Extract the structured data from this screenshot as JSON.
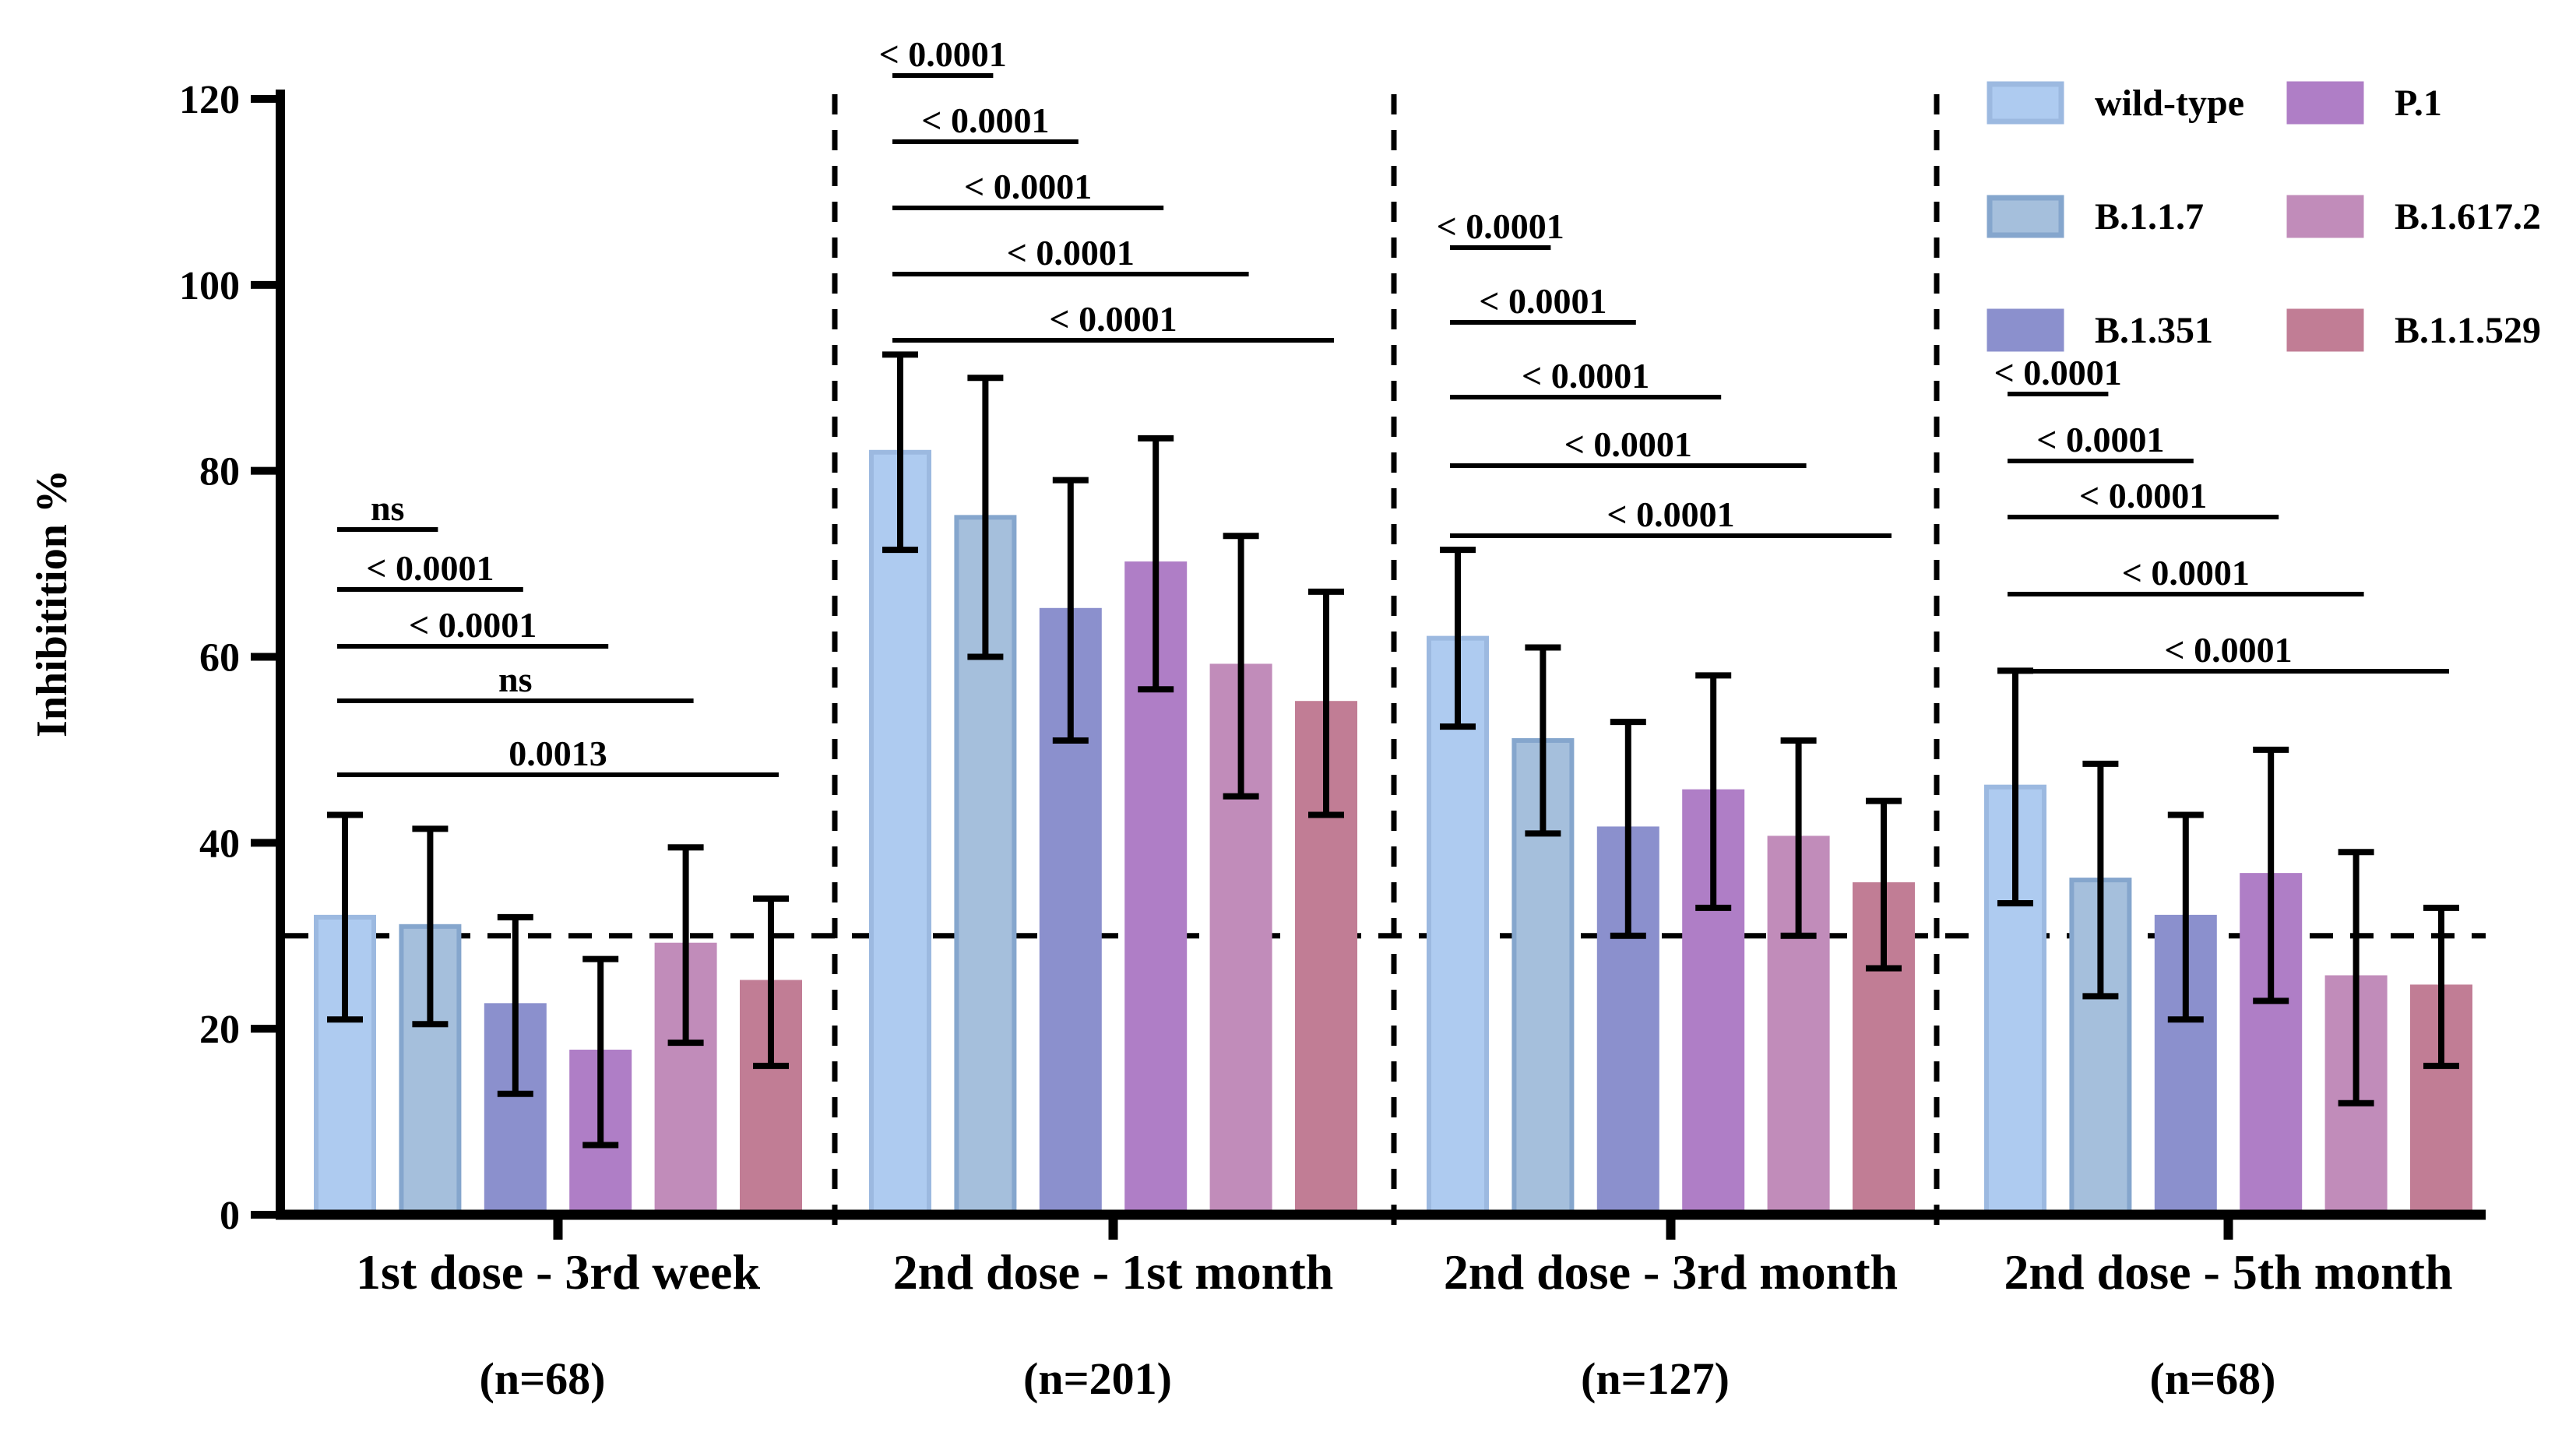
{
  "chart_data": {
    "type": "bar",
    "title": "",
    "ylabel": "Inhibitition %",
    "ylim": [
      0,
      120
    ],
    "yticks": [
      0,
      20,
      40,
      60,
      80,
      100,
      120
    ],
    "reference_line_y": 30,
    "grid": false,
    "legend_position": "top-right",
    "bar_colors": {
      "wild-type": {
        "fill": "#AECBF0",
        "stroke": "#9CB9E0"
      },
      "B.1.1.7": {
        "fill": "#A5BFDC",
        "stroke": "#85A6CD"
      },
      "B.1.351": {
        "fill": "#8B90CD",
        "stroke": "#8B90CD"
      },
      "P.1": {
        "fill": "#AF7EC6",
        "stroke": "#AF7EC6"
      },
      "B.1.617.2": {
        "fill": "#C18CBA",
        "stroke": "#C18CBA"
      },
      "B.1.1.529": {
        "fill": "#C17D95",
        "stroke": "#C17D95"
      }
    },
    "categories": [
      "1st dose -  3rd week",
      "2nd dose -  1st month",
      "2nd dose -  3rd month",
      "2nd dose -  5th month"
    ],
    "group_n_labels": [
      "(n=68)",
      "(n=201)",
      "(n=127)",
      "(n=68)"
    ],
    "series": [
      {
        "name": "wild-type",
        "values": [
          32,
          82,
          62,
          46
        ],
        "errors": [
          11,
          10.5,
          9.5,
          12.5
        ]
      },
      {
        "name": "B.1.1.7",
        "values": [
          31,
          75,
          51,
          36
        ],
        "errors": [
          10.5,
          15,
          10,
          12.5
        ]
      },
      {
        "name": "B.1.351",
        "values": [
          22.5,
          65,
          41.5,
          32
        ],
        "errors": [
          9.5,
          14,
          11.5,
          11
        ]
      },
      {
        "name": "P.1",
        "values": [
          17.5,
          70,
          45.5,
          36.5
        ],
        "errors": [
          10,
          13.5,
          12.5,
          13.5
        ]
      },
      {
        "name": "B.1.617.2",
        "values": [
          29,
          59,
          40.5,
          25.5
        ],
        "errors": [
          10.5,
          14,
          10.5,
          13.5
        ]
      },
      {
        "name": "B.1.1.529",
        "values": [
          25,
          55,
          35.5,
          24.5
        ],
        "errors": [
          9,
          12,
          9,
          8.5
        ]
      }
    ],
    "significance": {
      "comparison_base": "wild-type",
      "groups": [
        {
          "category": "1st dose -  3rd week",
          "labels": [
            "ns",
            "< 0.0001",
            "< 0.0001",
            "ns",
            "0.0013"
          ]
        },
        {
          "category": "2nd dose -  1st month",
          "labels": [
            "< 0.0001",
            "< 0.0001",
            "< 0.0001",
            "< 0.0001",
            "< 0.0001"
          ]
        },
        {
          "category": "2nd dose -  3rd month",
          "labels": [
            "< 0.0001",
            "< 0.0001",
            "< 0.0001",
            "< 0.0001",
            "< 0.0001"
          ]
        },
        {
          "category": "2nd dose -  5th month",
          "labels": [
            "< 0.0001",
            "< 0.0001",
            "< 0.0001",
            "< 0.0001",
            "< 0.0001"
          ]
        }
      ]
    },
    "legend": [
      "wild-type",
      "B.1.1.7",
      "B.1.351",
      "P.1",
      "B.1.617.2",
      "B.1.1.529"
    ]
  }
}
